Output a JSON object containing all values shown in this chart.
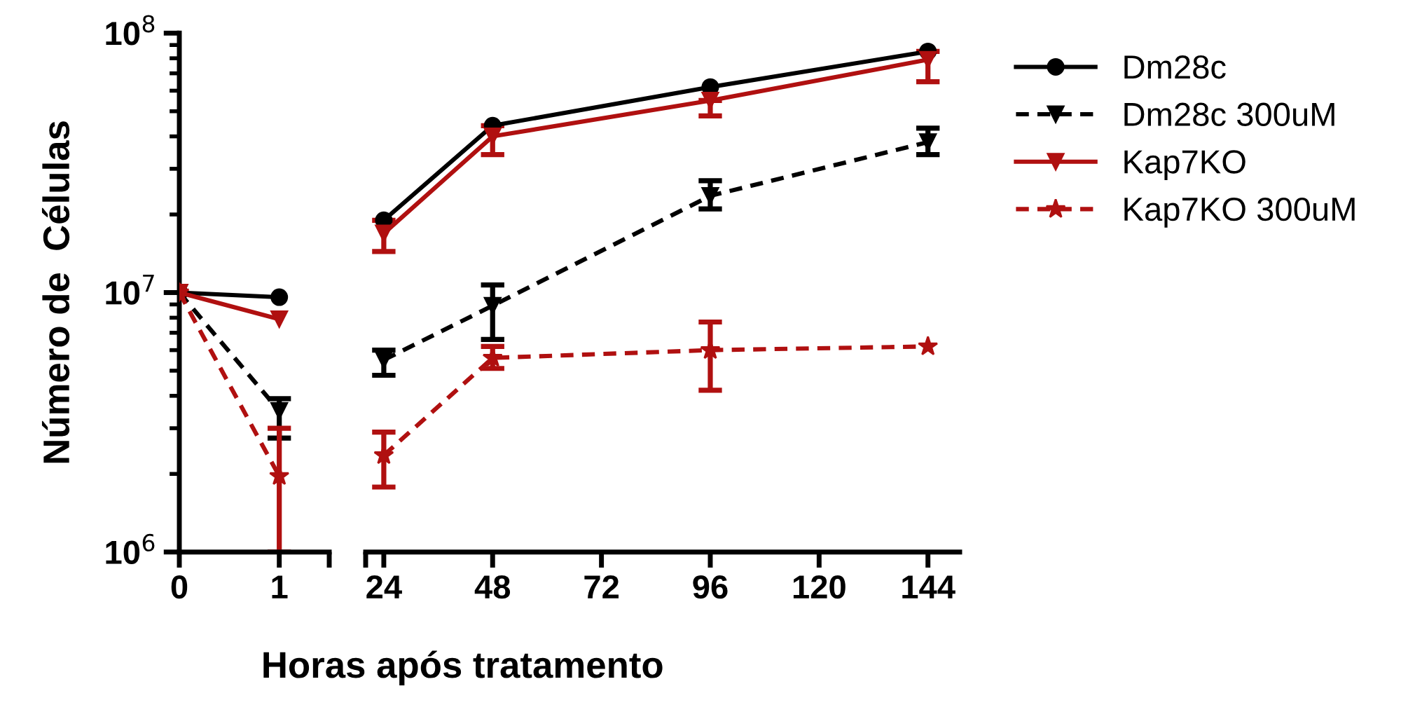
{
  "chart_data": [
    {
      "type": "line",
      "ylabel": "Número de  Células",
      "x": [
        0,
        1
      ],
      "xlim": [
        0,
        1.5
      ],
      "xticks": [
        0,
        1,
        {
          "value": 1.5,
          "label": null
        }
      ],
      "log": "y",
      "ylim": [
        1000000,
        100000000
      ],
      "yticks": [
        {
          "value": 1000000,
          "label": "10$^{6}$"
        },
        {
          "value": 10000000,
          "label": "10$^{7}$"
        },
        {
          "value": 100000000,
          "label": "10$^{8}$"
        }
      ],
      "grid": false,
      "legend": false,
      "series": [
        {
          "color": "#000000",
          "marker": "circle",
          "line_style": "solid",
          "values": [
            10000000,
            9600000
          ],
          "errors": [
            null,
            null
          ]
        },
        {
          "color": "#000000",
          "marker": "triangle",
          "line_style": "dashed",
          "values": [
            10000000,
            3500000
          ],
          "errors": [
            null,
            [
              2750000,
              3900000
            ]
          ]
        },
        {
          "color": "#b01010",
          "marker": "triangle",
          "line_style": "solid",
          "values": [
            10000000,
            7900000
          ],
          "errors": [
            null,
            null
          ]
        },
        {
          "color": "#b01010",
          "marker": "star",
          "line_style": "dashed",
          "values": [
            10000000,
            1960000
          ],
          "errors": [
            null,
            [
              1000000,
              3000000
            ]
          ]
        }
      ]
    },
    {
      "type": "line",
      "xlabel": "Horas após tratamento",
      "x": [
        24,
        48,
        96,
        144
      ],
      "xlim": [
        20,
        151
      ],
      "xticks": [
        {
          "value": 20,
          "label": null
        },
        24,
        48,
        72,
        96,
        120,
        144
      ],
      "log": "y",
      "ylim": [
        1000000,
        100000000
      ],
      "tick_labels": "x",
      "grid": false,
      "legend": "right",
      "series": [
        {
          "name": "Dm28c",
          "color": "#000000",
          "marker": "circle",
          "line_style": "solid",
          "values": [
            19000000,
            44000000,
            62000000,
            85000000
          ],
          "errors": [
            null,
            null,
            null,
            null
          ]
        },
        {
          "name": "Dm28c 300uM",
          "color": "#000000",
          "marker": "triangle",
          "line_style": "dashed",
          "values": [
            5500000,
            8900000,
            23600000,
            38000000
          ],
          "errors": [
            [
              4800000,
              6000000
            ],
            [
              6600000,
              10700000
            ],
            [
              21000000,
              27000000
            ],
            [
              34000000,
              43000000
            ]
          ]
        },
        {
          "name": "Kap7KO",
          "color": "#b01010",
          "marker": "triangle",
          "line_style": "solid",
          "values": [
            16900000,
            40000000,
            55000000,
            79000000
          ],
          "errors": [
            [
              14400000,
              19000000
            ],
            [
              34000000,
              44000000
            ],
            [
              48000000,
              55000000
            ],
            [
              65000000,
              85000000
            ]
          ]
        },
        {
          "name": "Kap7KO 300uM",
          "color": "#b01010",
          "marker": "star",
          "line_style": "dashed",
          "values": [
            2360000,
            5600000,
            6000000,
            6200000
          ],
          "errors": [
            [
              1780000,
              2900000
            ],
            [
              5100000,
              6200000
            ],
            [
              4200000,
              7700000
            ],
            null
          ]
        }
      ]
    }
  ]
}
